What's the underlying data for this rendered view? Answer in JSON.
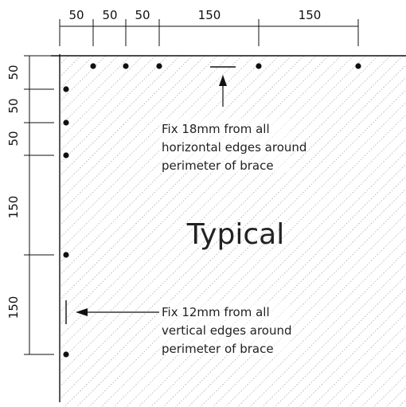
{
  "top_dimensions": [
    "50",
    "50",
    "50",
    "150",
    "150"
  ],
  "left_dimensions": [
    "50",
    "50",
    "50",
    "150",
    "150"
  ],
  "note_horizontal": {
    "lines": [
      "Fix 18mm from all",
      "horizontal edges around",
      "perimeter of brace"
    ]
  },
  "note_vertical": {
    "lines": [
      "Fix 12mm from all",
      "vertical edges around",
      "perimeter of brace"
    ]
  },
  "center_label": "Typical",
  "colors": {
    "line": "#111111",
    "hatch": "#9a9a9a",
    "fastener": "#111111"
  }
}
